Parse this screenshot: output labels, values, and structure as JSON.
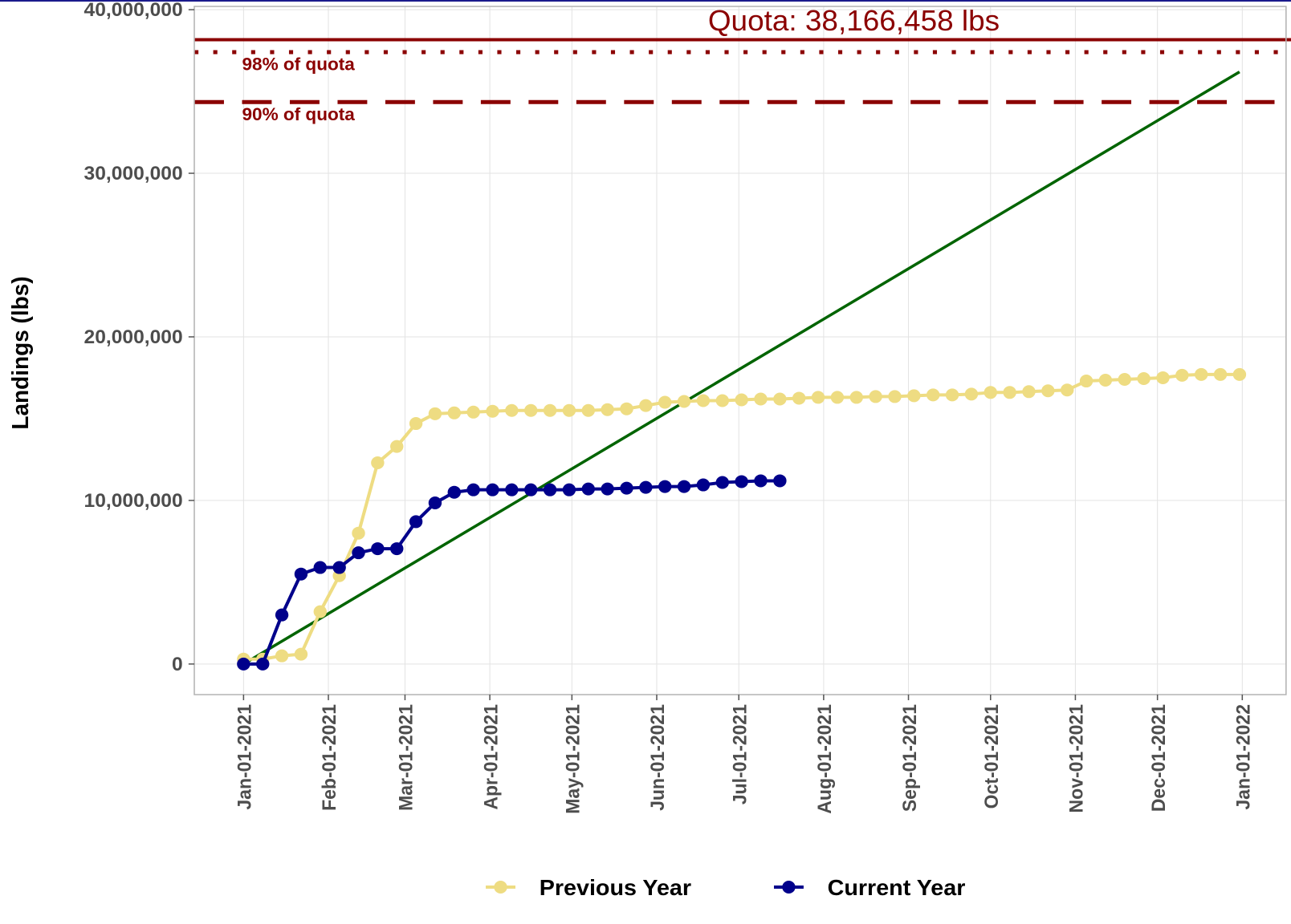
{
  "chart_data": {
    "type": "line",
    "ylabel": "Landings (lbs)",
    "x": [
      "2021-01-01",
      "2021-01-08",
      "2021-01-15",
      "2021-01-22",
      "2021-01-29",
      "2021-02-05",
      "2021-02-12",
      "2021-02-19",
      "2021-02-26",
      "2021-03-05",
      "2021-03-12",
      "2021-03-19",
      "2021-03-26",
      "2021-04-02",
      "2021-04-09",
      "2021-04-16",
      "2021-04-23",
      "2021-04-30",
      "2021-05-07",
      "2021-05-14",
      "2021-05-21",
      "2021-05-28",
      "2021-06-04",
      "2021-06-11",
      "2021-06-18",
      "2021-06-25",
      "2021-07-02",
      "2021-07-09",
      "2021-07-16",
      "2021-07-23",
      "2021-07-30",
      "2021-08-06",
      "2021-08-13",
      "2021-08-20",
      "2021-08-27",
      "2021-09-03",
      "2021-09-10",
      "2021-09-17",
      "2021-09-24",
      "2021-10-01",
      "2021-10-08",
      "2021-10-15",
      "2021-10-22",
      "2021-10-29",
      "2021-11-05",
      "2021-11-12",
      "2021-11-19",
      "2021-11-26",
      "2021-12-03",
      "2021-12-10",
      "2021-12-17",
      "2021-12-24",
      "2021-12-31"
    ],
    "series": [
      {
        "name": "Previous Year",
        "color": "#eedc82",
        "values": [
          300000,
          300000,
          500000,
          600000,
          3200000,
          5400000,
          8000000,
          12300000,
          13300000,
          14700000,
          15300000,
          15350000,
          15400000,
          15450000,
          15500000,
          15500000,
          15500000,
          15500000,
          15500000,
          15550000,
          15600000,
          15800000,
          16000000,
          16050000,
          16100000,
          16100000,
          16150000,
          16200000,
          16200000,
          16250000,
          16300000,
          16300000,
          16300000,
          16350000,
          16350000,
          16400000,
          16450000,
          16450000,
          16500000,
          16600000,
          16600000,
          16650000,
          16700000,
          16750000,
          17300000,
          17350000,
          17400000,
          17450000,
          17500000,
          17650000,
          17700000,
          17700000,
          17700000
        ]
      },
      {
        "name": "Current Year",
        "color": "#00008b",
        "values": [
          0,
          0,
          3000000,
          5500000,
          5900000,
          5900000,
          6800000,
          7050000,
          7050000,
          8700000,
          9850000,
          10500000,
          10650000,
          10650000,
          10650000,
          10650000,
          10650000,
          10650000,
          10700000,
          10700000,
          10750000,
          10800000,
          10850000,
          10850000,
          10950000,
          11100000,
          11150000,
          11200000,
          11200000,
          null,
          null,
          null,
          null,
          null,
          null,
          null,
          null,
          null,
          null,
          null,
          null,
          null,
          null,
          null,
          null,
          null,
          null,
          null,
          null,
          null,
          null,
          null,
          null
        ]
      }
    ],
    "trend": {
      "color": "#006400",
      "x": [
        "2021-01-01",
        "2021-12-31"
      ],
      "values": [
        0,
        36200000
      ]
    },
    "reference_lines": [
      {
        "value": 38166458,
        "label": "Quota: 38,166,458 lbs",
        "style": "solid",
        "color": "#8b0000"
      },
      {
        "value": 37403129,
        "label": "98% of quota",
        "style": "dotted",
        "color": "#8b0000"
      },
      {
        "value": 34349812,
        "label": "90% of quota",
        "style": "dashed",
        "color": "#8b0000"
      }
    ],
    "xlim": [
      "2020-12-14",
      "2022-01-17"
    ],
    "xticks": [
      {
        "value": "2021-01-01",
        "label": "Jan-01-2021"
      },
      {
        "value": "2021-02-01",
        "label": "Feb-01-2021"
      },
      {
        "value": "2021-03-01",
        "label": "Mar-01-2021"
      },
      {
        "value": "2021-04-01",
        "label": "Apr-01-2021"
      },
      {
        "value": "2021-05-01",
        "label": "May-01-2021"
      },
      {
        "value": "2021-06-01",
        "label": "Jun-01-2021"
      },
      {
        "value": "2021-07-01",
        "label": "Jul-01-2021"
      },
      {
        "value": "2021-08-01",
        "label": "Aug-01-2021"
      },
      {
        "value": "2021-09-01",
        "label": "Sep-01-2021"
      },
      {
        "value": "2021-10-01",
        "label": "Oct-01-2021"
      },
      {
        "value": "2021-11-01",
        "label": "Nov-01-2021"
      },
      {
        "value": "2021-12-01",
        "label": "Dec-01-2021"
      },
      {
        "value": "2022-01-01",
        "label": "Jan-01-2022"
      }
    ],
    "ylim": [
      -1870000,
      40200000
    ],
    "yticks": [
      0,
      {
        "value": 10000000,
        "label": "10,000,000"
      },
      {
        "value": 20000000,
        "label": "20,000,000"
      },
      {
        "value": 30000000,
        "label": "30,000,000"
      },
      {
        "value": 40000000,
        "label": "40,000,000"
      }
    ],
    "grid": true,
    "legend": "bottom"
  }
}
